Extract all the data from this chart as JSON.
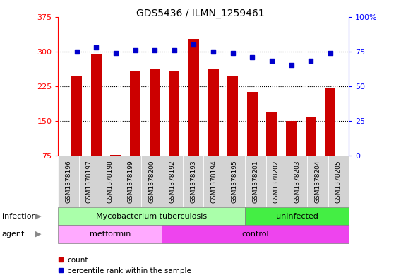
{
  "title": "GDS5436 / ILMN_1259461",
  "samples": [
    "GSM1378196",
    "GSM1378197",
    "GSM1378198",
    "GSM1378199",
    "GSM1378200",
    "GSM1378192",
    "GSM1378193",
    "GSM1378194",
    "GSM1378195",
    "GSM1378201",
    "GSM1378202",
    "GSM1378203",
    "GSM1378204",
    "GSM1378205"
  ],
  "counts": [
    248,
    295,
    76,
    258,
    263,
    258,
    327,
    263,
    248,
    213,
    168,
    150,
    158,
    222
  ],
  "percentiles": [
    75,
    78,
    74,
    76,
    76,
    76,
    80,
    75,
    74,
    71,
    68,
    65,
    68,
    74
  ],
  "ylim_left": [
    75,
    375
  ],
  "ylim_right": [
    0,
    100
  ],
  "yticks_left": [
    75,
    150,
    225,
    300,
    375
  ],
  "yticks_right": [
    0,
    25,
    50,
    75,
    100
  ],
  "bar_color": "#cc0000",
  "dot_color": "#0000cc",
  "infection_groups": [
    {
      "label": "Mycobacterium tuberculosis",
      "start": 0,
      "end": 8,
      "color": "#aaffaa"
    },
    {
      "label": "uninfected",
      "start": 9,
      "end": 13,
      "color": "#44ee44"
    }
  ],
  "agent_groups": [
    {
      "label": "metformin",
      "start": 0,
      "end": 4,
      "color": "#ffaaff"
    },
    {
      "label": "control",
      "start": 5,
      "end": 13,
      "color": "#ee44ee"
    }
  ],
  "infection_label": "infection",
  "agent_label": "agent",
  "legend_count_label": "count",
  "legend_percentile_label": "percentile rank within the sample",
  "cell_bg": "#d3d3d3",
  "plot_bg": "#ffffff"
}
